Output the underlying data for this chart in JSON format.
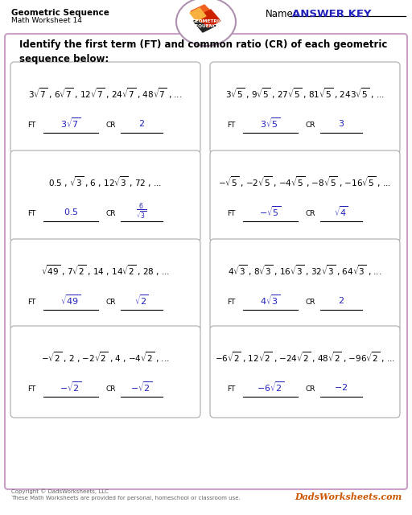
{
  "title": "Geometric Sequence",
  "subtitle": "Math Worksheet 14",
  "name_label": "Name:",
  "answer_key": "ANSWER KEY",
  "instruction": "Identify the first term (FT) and common ratio (CR) of each geometric\nsequence below:",
  "bg_color": "#ffffff",
  "outer_border_color": "#c8a0c8",
  "answer_color": "#2222bb",
  "problems": [
    {
      "sequence": "$3\\sqrt{7}$ , $6\\sqrt{7}$ , $12\\sqrt{7}$ , $24\\sqrt{7}$ , $48\\sqrt{7}$ , ...",
      "ft": "$3\\sqrt{7}$",
      "cr": "$2$"
    },
    {
      "sequence": "$3\\sqrt{5}$ , $9\\sqrt{5}$ , $27\\sqrt{5}$ , $81\\sqrt{5}$ , $243\\sqrt{5}$ , ...",
      "ft": "$3\\sqrt{5}$",
      "cr": "$3$"
    },
    {
      "sequence": "$0.5$ , $\\sqrt{3}$ , $6$ , $12\\sqrt{3}$ , $72$ , ...",
      "ft": "$0.5$",
      "cr": "$\\frac{6}{\\sqrt{3}}$"
    },
    {
      "sequence": "$-\\sqrt{5}$ , $-2\\sqrt{5}$ , $-4\\sqrt{5}$ , $-8\\sqrt{5}$ , $-16\\sqrt{5}$ , ...",
      "ft": "$- \\sqrt{5}$",
      "cr": "$\\sqrt{4}$"
    },
    {
      "sequence": "$\\sqrt{49}$ , $7\\sqrt{2}$ , $14$ , $14\\sqrt{2}$ , $28$ , ...",
      "ft": "$\\sqrt{49}$",
      "cr": "$\\sqrt{2}$"
    },
    {
      "sequence": "$4\\sqrt{3}$ , $8\\sqrt{3}$ , $16\\sqrt{3}$ , $32\\sqrt{3}$ , $64\\sqrt{3}$ , ...",
      "ft": "$4\\sqrt{3}$",
      "cr": "$2$"
    },
    {
      "sequence": "$-\\sqrt{2}$ , $2$ , $-2\\sqrt{2}$ , $4$ , $-4\\sqrt{2}$ , ...",
      "ft": "$- \\sqrt{2}$",
      "cr": "$- \\sqrt{2}$"
    },
    {
      "sequence": "$-6\\sqrt{2}$ , $12\\sqrt{2}$ , $-24\\sqrt{2}$ , $48\\sqrt{2}$ , $-96\\sqrt{2}$ , ...",
      "ft": "$-6\\sqrt{2}$",
      "cr": "$- 2$"
    }
  ],
  "copyright": "Copyright © DadsWorksheets, LLC\nThese Math Worksheets are provided for personal, homeschool or classroom use.",
  "watermark": "DadsWorksheets.com"
}
